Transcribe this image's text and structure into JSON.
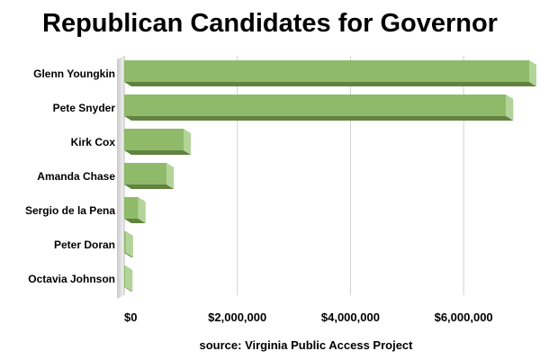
{
  "chart_data": {
    "type": "bar",
    "orientation": "horizontal",
    "title": "Republican Candidates for Governor",
    "source": "source: Virginia Public Access Project",
    "categories": [
      "Glenn Youngkin",
      "Pete Snyder",
      "Kirk Cox",
      "Amanda Chase",
      "Sergio de la Pena",
      "Peter Doran",
      "Octavia Johnson"
    ],
    "values": [
      7300000,
      6750000,
      1050000,
      750000,
      250000,
      30000,
      20000
    ],
    "x_ticks": [
      "$0",
      "$2,000,000",
      "$4,000,000",
      "$6,000,000"
    ],
    "x_tick_values": [
      0,
      2000000,
      4000000,
      6000000
    ],
    "xlim": [
      0,
      7350000
    ],
    "grid": "vertical",
    "legend": "none",
    "colors": {
      "bar_top": "#9dc77a",
      "bar_face": "#8fba6a",
      "bar_side": "#b2d498",
      "bar_bottom": "#62823f",
      "grid": "#d0d0d0"
    }
  }
}
